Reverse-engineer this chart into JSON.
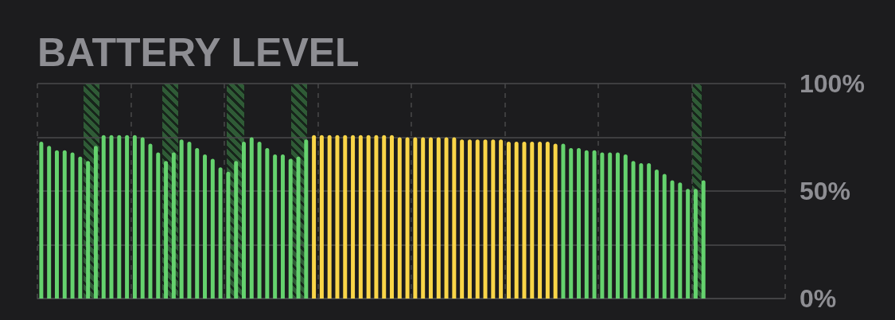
{
  "chart_data": {
    "type": "bar",
    "title": "BATTERY LEVEL",
    "categories": [
      null,
      null,
      null,
      null,
      null,
      null,
      null,
      null,
      null,
      null,
      null,
      null,
      null,
      null,
      null,
      null,
      null,
      null,
      null,
      null,
      null,
      null,
      null,
      null,
      null,
      null,
      null,
      null,
      null,
      null,
      null,
      null,
      null,
      null,
      null,
      null,
      null,
      null,
      null,
      null,
      null,
      null,
      null,
      null,
      null,
      null,
      null,
      null,
      null,
      null,
      null,
      null,
      null,
      null,
      null,
      null,
      null,
      null,
      null,
      null,
      null,
      null,
      null,
      null,
      null,
      null,
      null,
      null,
      null,
      null,
      null,
      null,
      null,
      null,
      null,
      null,
      null,
      null,
      null,
      null,
      null,
      null,
      null,
      null,
      null,
      null
    ],
    "values": [
      73,
      71,
      69,
      69,
      68,
      66,
      64,
      71,
      76,
      76,
      76,
      76,
      76,
      75,
      72,
      68,
      64,
      68,
      74,
      73,
      70,
      67,
      65,
      61,
      59,
      64,
      73,
      75,
      73,
      70,
      67,
      67,
      65,
      66,
      74,
      76,
      76,
      76,
      76,
      76,
      76,
      76,
      76,
      76,
      76,
      76,
      75,
      75,
      75,
      75,
      75,
      75,
      75,
      75,
      74,
      74,
      74,
      74,
      74,
      74,
      73,
      73,
      73,
      73,
      73,
      73,
      72,
      72,
      70,
      70,
      69,
      69,
      68,
      68,
      68,
      67,
      64,
      63,
      63,
      60,
      58,
      55,
      54,
      51,
      51,
      55
    ],
    "colors": [
      "#65d26e",
      "#65d26e",
      "#65d26e",
      "#65d26e",
      "#65d26e",
      "#65d26e",
      "#65d26e",
      "#65d26e",
      "#65d26e",
      "#65d26e",
      "#65d26e",
      "#65d26e",
      "#65d26e",
      "#65d26e",
      "#65d26e",
      "#65d26e",
      "#65d26e",
      "#65d26e",
      "#65d26e",
      "#65d26e",
      "#65d26e",
      "#65d26e",
      "#65d26e",
      "#65d26e",
      "#65d26e",
      "#65d26e",
      "#65d26e",
      "#65d26e",
      "#65d26e",
      "#65d26e",
      "#65d26e",
      "#65d26e",
      "#65d26e",
      "#65d26e",
      "#65d26e",
      "#f9d548",
      "#f9d548",
      "#f9d548",
      "#f9d548",
      "#f9d548",
      "#f9d548",
      "#f9d548",
      "#f9d548",
      "#f9d548",
      "#f9d548",
      "#f9d548",
      "#f9d548",
      "#f9d548",
      "#f9d548",
      "#f9d548",
      "#f9d548",
      "#f9d548",
      "#f9d548",
      "#f9d548",
      "#f9d548",
      "#f9d548",
      "#f9d548",
      "#f9d548",
      "#f9d548",
      "#f9d548",
      "#f9d548",
      "#f9d548",
      "#f9d548",
      "#f9d548",
      "#f9d548",
      "#f9d548",
      "#f9d548",
      "#65d26e",
      "#65d26e",
      "#65d26e",
      "#65d26e",
      "#65d26e",
      "#65d26e",
      "#65d26e",
      "#65d26e",
      "#65d26e",
      "#65d26e",
      "#65d26e",
      "#65d26e",
      "#65d26e",
      "#65d26e",
      "#65d26e",
      "#65d26e",
      "#65d26e",
      "#65d26e",
      "#65d26e"
    ],
    "ylim": [
      0,
      100
    ],
    "yticks": [
      {
        "value": 0,
        "label": "0%"
      },
      {
        "value": 25,
        "label": null
      },
      {
        "value": 50,
        "label": "50%"
      },
      {
        "value": 75,
        "label": null
      },
      {
        "value": 100,
        "label": "100%"
      }
    ],
    "grid": true,
    "tick_labels": "y"
  }
}
